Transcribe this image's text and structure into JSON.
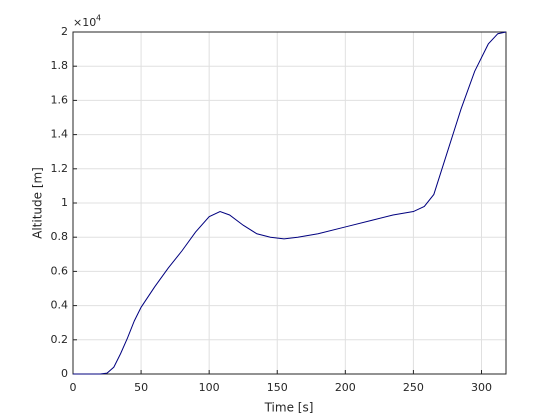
{
  "chart_data": {
    "type": "line",
    "xlabel": "Time [s]",
    "ylabel": "Altitude [m]",
    "y_exponent": {
      "base": "×10",
      "power": "4"
    },
    "x": [
      0,
      10,
      20,
      25,
      30,
      35,
      40,
      45,
      50,
      60,
      70,
      80,
      90,
      100,
      108,
      115,
      125,
      135,
      145,
      155,
      165,
      180,
      200,
      220,
      235,
      250,
      258,
      265,
      275,
      285,
      295,
      305,
      312,
      318
    ],
    "series": [
      {
        "name": "Altitude",
        "color": "#00007f",
        "values": [
          0,
          0,
          0,
          0.005,
          0.04,
          0.12,
          0.21,
          0.31,
          0.39,
          0.51,
          0.62,
          0.72,
          0.83,
          0.92,
          0.95,
          0.93,
          0.87,
          0.82,
          0.8,
          0.79,
          0.8,
          0.82,
          0.86,
          0.9,
          0.93,
          0.95,
          0.98,
          1.05,
          1.3,
          1.55,
          1.77,
          1.93,
          1.99,
          2.0
        ]
      }
    ],
    "xlim": [
      0,
      318
    ],
    "ylim": [
      0,
      2
    ],
    "xticks": [
      0,
      50,
      100,
      150,
      200,
      250,
      300
    ],
    "yticks": [
      0,
      0.2,
      0.4,
      0.6,
      0.8,
      1,
      1.2,
      1.4,
      1.6,
      1.8,
      2
    ],
    "grid": true
  }
}
